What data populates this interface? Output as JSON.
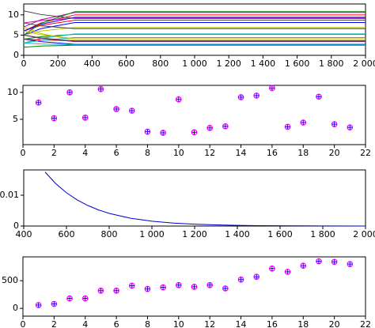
{
  "chart_data": [
    {
      "type": "line",
      "x": [
        0,
        100,
        300,
        2000
      ],
      "xlim": [
        0,
        2000
      ],
      "xticks": [
        0,
        200,
        400,
        600,
        800,
        {
          "value": 1000,
          "label": "1 000"
        },
        {
          "value": 1200,
          "label": "1 200"
        },
        {
          "value": 1400,
          "label": "1 400"
        },
        {
          "value": 1600,
          "label": "1 600"
        },
        {
          "value": 1800,
          "label": "1 800"
        },
        {
          "value": 2000,
          "label": "2 000"
        }
      ],
      "ylim": [
        0,
        12.7
      ],
      "yticks": [
        0,
        5,
        10
      ],
      "series": [
        {
          "color": "#0000ff",
          "values": [
            5,
            6.6,
            8.1,
            8.1
          ]
        },
        {
          "color": "#008000",
          "values": [
            4,
            4.6,
            5.2,
            5.2
          ]
        },
        {
          "color": "#ff0000",
          "values": [
            6,
            8,
            10,
            10
          ]
        },
        {
          "color": "#00bfbf",
          "values": [
            3,
            4.2,
            5.3,
            5.3
          ]
        },
        {
          "color": "#bf00bf",
          "values": [
            7,
            8.8,
            10.6,
            10.6
          ]
        },
        {
          "color": "#bfbf00",
          "values": [
            5,
            6,
            6.9,
            6.9
          ]
        },
        {
          "color": "#404040",
          "values": [
            8,
            7.3,
            6.6,
            6.6
          ]
        },
        {
          "color": "#0000ff",
          "values": [
            4,
            3.4,
            2.7,
            2.7
          ]
        },
        {
          "color": "#008000",
          "values": [
            2,
            2.3,
            2.5,
            2.5
          ]
        },
        {
          "color": "#ff0000",
          "values": [
            6,
            7.4,
            8.7,
            8.7
          ]
        },
        {
          "color": "#00bfbf",
          "values": [
            3,
            2.8,
            2.6,
            2.6
          ]
        },
        {
          "color": "#bf00bf",
          "values": [
            5,
            4.2,
            3.4,
            3.4
          ]
        },
        {
          "color": "#bfbf00",
          "values": [
            7,
            5.4,
            3.7,
            3.7
          ]
        },
        {
          "color": "#404040",
          "values": [
            11,
            10.1,
            9.1,
            9.1
          ]
        },
        {
          "color": "#0000ff",
          "values": [
            6,
            7.7,
            9.4,
            9.4
          ]
        },
        {
          "color": "#008000",
          "values": [
            5,
            7.9,
            10.8,
            10.8
          ]
        },
        {
          "color": "#ff0000",
          "values": [
            4,
            3.8,
            3.6,
            3.6
          ]
        },
        {
          "color": "#00bfbf",
          "values": [
            3,
            3.7,
            4.4,
            4.4
          ]
        },
        {
          "color": "#bf00bf",
          "values": [
            8,
            8.6,
            9.2,
            9.2
          ]
        },
        {
          "color": "#bfbf00",
          "values": [
            6,
            5.1,
            4.1,
            4.1
          ]
        },
        {
          "color": "#404040",
          "values": [
            5,
            4.3,
            3.5,
            3.5
          ]
        }
      ]
    },
    {
      "type": "scatter",
      "x": [
        1,
        2,
        3,
        4,
        5,
        6,
        7,
        8,
        9,
        10,
        11,
        12,
        13,
        14,
        15,
        16,
        17,
        18,
        19,
        20,
        21
      ],
      "values": [
        8.1,
        5.2,
        10,
        5.3,
        10.6,
        6.9,
        6.6,
        2.7,
        2.5,
        8.7,
        2.6,
        3.4,
        3.7,
        9.1,
        9.4,
        10.8,
        3.6,
        4.4,
        9.2,
        4.1,
        3.5
      ],
      "color": "#ff00ff",
      "cross_color": "#0000ff",
      "xlim": [
        0,
        22
      ],
      "xticks": [
        0,
        2,
        4,
        6,
        8,
        10,
        12,
        14,
        16,
        18,
        20,
        22
      ],
      "ylim": [
        0.3,
        11.3
      ],
      "yticks": [
        5,
        10
      ]
    },
    {
      "type": "line",
      "x": [
        500,
        550,
        600,
        650,
        700,
        750,
        800,
        900,
        1000,
        1100,
        1200,
        1300,
        1400,
        1500,
        1600,
        1800,
        2000
      ],
      "xlim": [
        400,
        2000
      ],
      "xticks": [
        400,
        600,
        800,
        {
          "value": 1000,
          "label": "1 000"
        },
        {
          "value": 1200,
          "label": "1 200"
        },
        {
          "value": 1400,
          "label": "1 400"
        },
        {
          "value": 1600,
          "label": "1 600"
        },
        {
          "value": 1800,
          "label": "1 800"
        },
        {
          "value": 2000,
          "label": "2 000"
        }
      ],
      "ylim": [
        0,
        0.0182
      ],
      "yticks": [
        0,
        0.01
      ],
      "series": [
        {
          "color": "#0000cc",
          "values": [
            0.0175,
            0.01375,
            0.0108,
            0.00848,
            0.00666,
            0.00523,
            0.00411,
            0.00254,
            0.00156,
            0.00097,
            0.0006,
            0.00037,
            0.00023,
            0.00014,
            9e-05,
            3e-05,
            1e-05
          ]
        }
      ]
    },
    {
      "type": "scatter",
      "x": [
        1,
        2,
        3,
        4,
        5,
        6,
        7,
        8,
        9,
        10,
        11,
        12,
        13,
        14,
        15,
        16,
        17,
        18,
        19,
        20,
        21
      ],
      "values": [
        60,
        80,
        180,
        180,
        320,
        320,
        410,
        350,
        380,
        420,
        390,
        420,
        360,
        520,
        570,
        720,
        660,
        770,
        850,
        840,
        800
      ],
      "color": "#ff00ff",
      "cross_color": "#0000ff",
      "xlim": [
        0,
        22
      ],
      "xticks": [
        0,
        2,
        4,
        6,
        8,
        10,
        12,
        14,
        16,
        18,
        20,
        22
      ],
      "ylim": [
        -140,
        930
      ],
      "yticks": [
        0,
        500
      ]
    }
  ]
}
